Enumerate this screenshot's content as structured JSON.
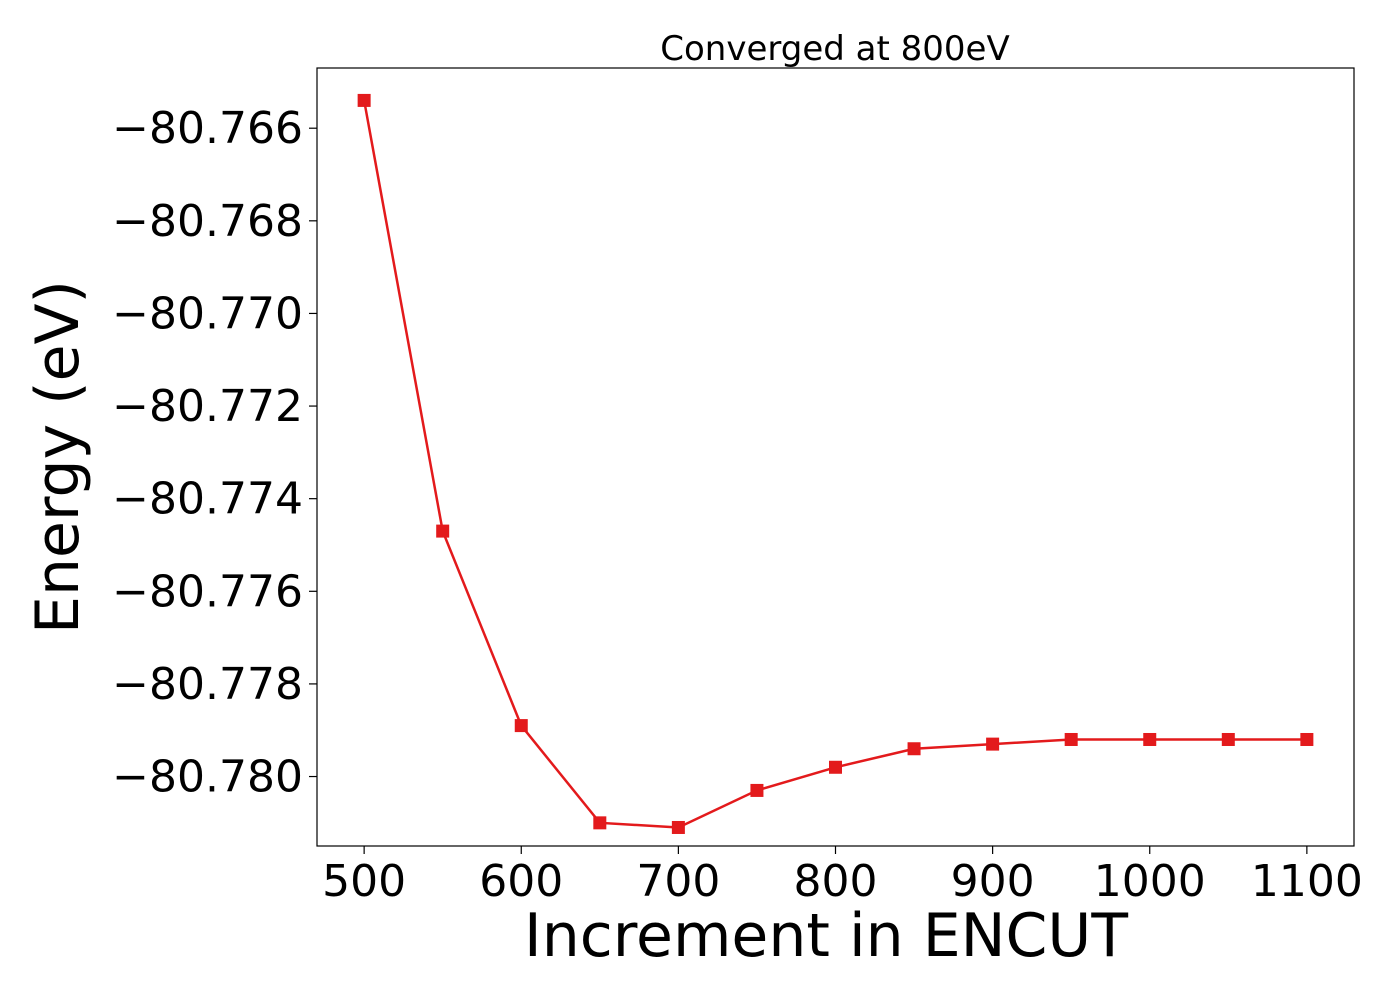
{
  "chart_data": {
    "type": "line",
    "title": "Converged at 800eV",
    "xlabel": "Increment in ENCUT",
    "ylabel": "Energy (eV)",
    "xlim": [
      470,
      1130
    ],
    "ylim": [
      -80.7815,
      -80.7647
    ],
    "x_ticks": [
      500,
      600,
      700,
      800,
      900,
      1000,
      1100
    ],
    "x_tick_labels": [
      "500",
      "600",
      "700",
      "800",
      "900",
      "1000",
      "1100"
    ],
    "y_ticks": [
      -80.766,
      -80.768,
      -80.77,
      -80.772,
      -80.774,
      -80.776,
      -80.778,
      -80.78
    ],
    "y_tick_labels": [
      "−80.766",
      "−80.768",
      "−80.770",
      "−80.772",
      "−80.774",
      "−80.776",
      "−80.778",
      "−80.780"
    ],
    "grid": false,
    "series": [
      {
        "color": "#e31a1c",
        "marker": "square",
        "x": [
          500,
          550,
          600,
          650,
          700,
          750,
          800,
          850,
          900,
          950,
          1000,
          1050,
          1100
        ],
        "y": [
          -80.7654,
          -80.7747,
          -80.7789,
          -80.781,
          -80.7811,
          -80.7803,
          -80.7798,
          -80.7794,
          -80.7793,
          -80.7792,
          -80.7792,
          -80.7792,
          -80.7792
        ]
      }
    ]
  }
}
